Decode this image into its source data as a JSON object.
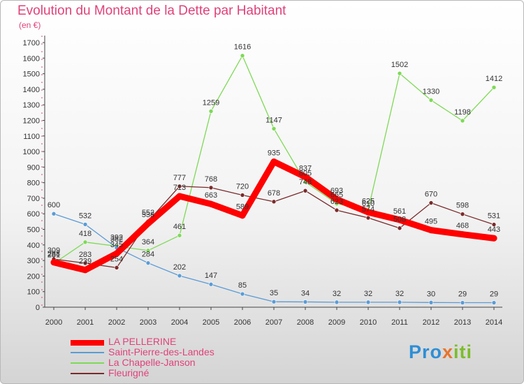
{
  "title": "Evolution du Montant de la Dette par Habitant",
  "unit": "(en €)",
  "logo": {
    "part1": "Pro",
    "part2": "x",
    "part3": "iti"
  },
  "chart_data": {
    "type": "line",
    "title": "Evolution du Montant de la Dette par Habitant",
    "ylabel": "(en €)",
    "xlabel": "",
    "ylim": [
      0,
      1700
    ],
    "yticks": [
      0,
      100,
      200,
      300,
      400,
      500,
      600,
      700,
      800,
      900,
      1000,
      1100,
      1200,
      1300,
      1400,
      1500,
      1600,
      1700
    ],
    "grid": false,
    "legend_position": "bottom-left",
    "x": [
      "2000",
      "2001",
      "2002",
      "2003",
      "2004",
      "2005",
      "2006",
      "2007",
      "2008",
      "2009",
      "2010",
      "2011",
      "2012",
      "2013",
      "2014"
    ],
    "series": [
      {
        "name": "LA PELLERINE",
        "color": "#ff0000",
        "values": [
          288,
          239,
          345,
          538,
          713,
          663,
          589,
          935,
          837,
          693,
          610,
          561,
          495,
          468,
          443
        ]
      },
      {
        "name": "Saint-Pierre-des-Landes",
        "color": "#5b9bd5",
        "values": [
          600,
          532,
          382,
          284,
          202,
          147,
          85,
          35,
          34,
          32,
          32,
          32,
          30,
          29,
          29
        ]
      },
      {
        "name": "La Chapelle-Janson",
        "color": "#7ed957",
        "values": [
          281,
          418,
          392,
          364,
          461,
          1259,
          1616,
          1147,
          805,
          665,
          625,
          1502,
          1330,
          1198,
          1412
        ]
      },
      {
        "name": "Fleurigné",
        "color": "#7a2a2a",
        "values": [
          309,
          283,
          254,
          552,
          777,
          768,
          720,
          678,
          748,
          623,
          574,
          508,
          670,
          598,
          531
        ]
      }
    ]
  }
}
